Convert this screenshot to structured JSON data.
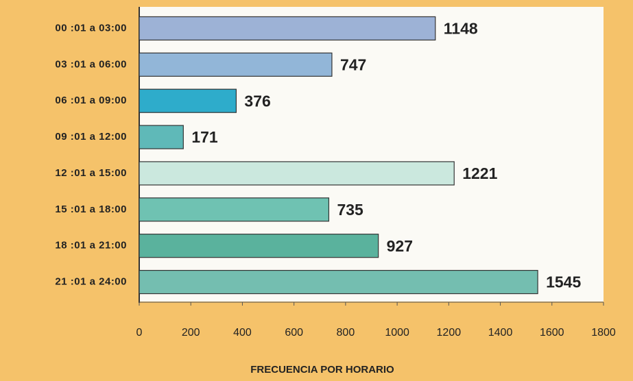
{
  "chart_data": {
    "type": "bar",
    "orientation": "horizontal",
    "xlabel": "FRECUENCIA POR HORARIO",
    "categories": [
      "00 :01 a 03:00",
      "03 :01 a 06:00",
      "06 :01 a 09:00",
      "09 :01 a 12:00",
      "12 :01 a 15:00",
      "15 :01 a 18:00",
      "18 :01 a 21:00",
      "21 :01 a 24:00"
    ],
    "values": [
      1148,
      747,
      376,
      171,
      1221,
      735,
      927,
      1545
    ],
    "colors": [
      "#9db2d6",
      "#92b6d8",
      "#2eaccb",
      "#5fb9b8",
      "#cbe8de",
      "#6fc2b2",
      "#5ab29d",
      "#74beb0"
    ],
    "xlim": [
      0,
      1800
    ],
    "xticks": [
      0,
      200,
      400,
      600,
      800,
      1000,
      1200,
      1400,
      1600,
      1800
    ]
  }
}
